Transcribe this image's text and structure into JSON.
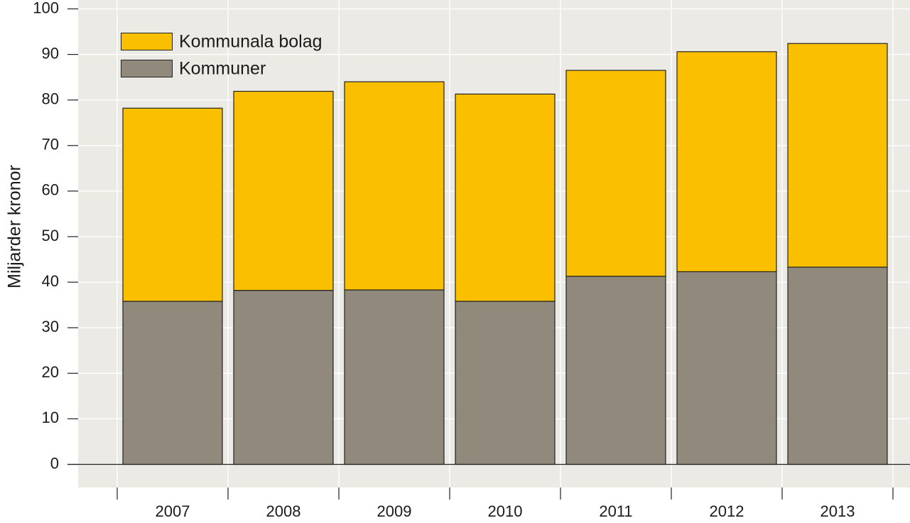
{
  "chart_data": {
    "type": "bar",
    "stacked": true,
    "title": "",
    "xlabel": "",
    "ylabel": "Miljarder kronor",
    "ylim": [
      0,
      100
    ],
    "yticks": [
      0,
      10,
      20,
      30,
      40,
      50,
      60,
      70,
      80,
      90,
      100
    ],
    "grid": true,
    "legend_position": "top-left",
    "categories": [
      "2007",
      "2008",
      "2009",
      "2010",
      "2011",
      "2012",
      "2013"
    ],
    "series": [
      {
        "name": "Kommuner",
        "color": "#91897c",
        "values": [
          35.8,
          38.2,
          38.3,
          35.8,
          41.3,
          42.3,
          43.3
        ]
      },
      {
        "name": "Kommunala bolag",
        "color": "#fac000",
        "values": [
          42.4,
          43.7,
          45.7,
          45.5,
          45.2,
          48.3,
          49.1
        ]
      }
    ],
    "legend_order": [
      "Kommunala bolag",
      "Kommuner"
    ]
  },
  "colors": {
    "plot_background": "#ebeae5",
    "grid": "#ffffff",
    "outline": "#222222"
  }
}
